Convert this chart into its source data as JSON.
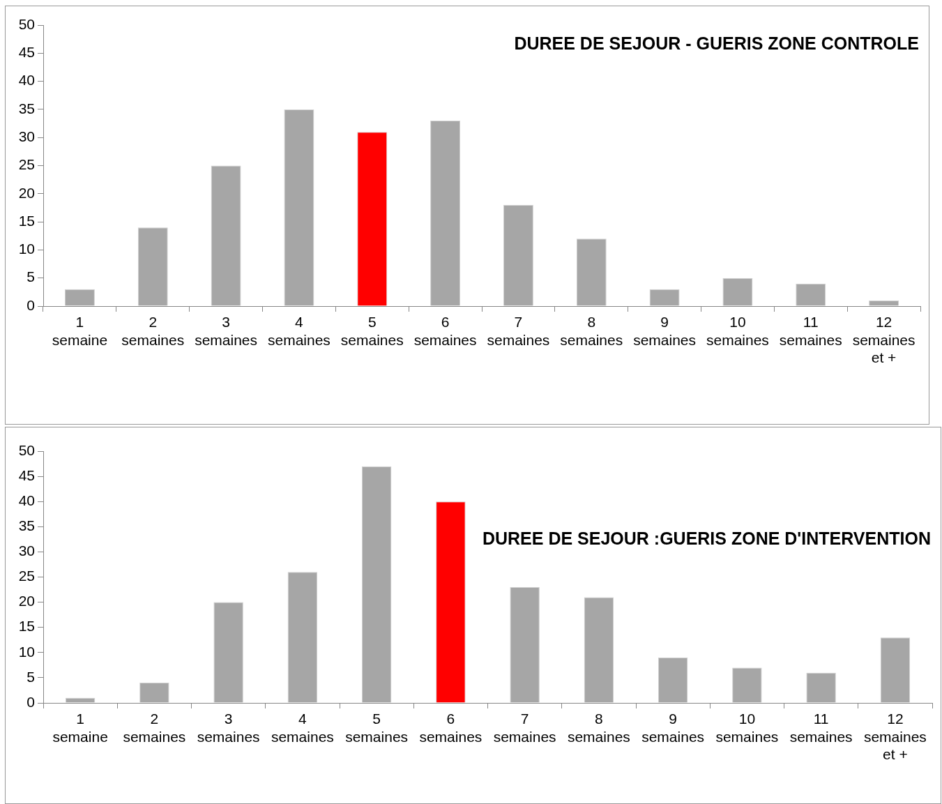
{
  "chart_data": [
    {
      "type": "bar",
      "title": "DUREE DE SEJOUR - GUERIS ZONE CONTROLE",
      "categories": [
        "1\nsemaine",
        "2\nsemaines",
        "3\nsemaines",
        "4\nsemaines",
        "5\nsemaines",
        "6\nsemaines",
        "7\nsemaines",
        "8\nsemaines",
        "9\nsemaines",
        "10\nsemaines",
        "11\nsemaines",
        "12\nsemaines\net +"
      ],
      "values": [
        3,
        14,
        25,
        35,
        31,
        33,
        18,
        12,
        3,
        5,
        4,
        1
      ],
      "colors": [
        "#a6a6a6",
        "#a6a6a6",
        "#a6a6a6",
        "#a6a6a6",
        "#ff0000",
        "#a6a6a6",
        "#a6a6a6",
        "#a6a6a6",
        "#a6a6a6",
        "#a6a6a6",
        "#a6a6a6",
        "#a6a6a6"
      ],
      "ylim": [
        0,
        50
      ],
      "yticks": [
        0,
        5,
        10,
        15,
        20,
        25,
        30,
        35,
        40,
        45,
        50
      ],
      "grid": false,
      "legend": false
    },
    {
      "type": "bar",
      "title": "DUREE DE SEJOUR :GUERIS ZONE D'INTERVENTION",
      "categories": [
        "1\nsemaine",
        "2\nsemaines",
        "3\nsemaines",
        "4\nsemaines",
        "5\nsemaines",
        "6\nsemaines",
        "7\nsemaines",
        "8\nsemaines",
        "9\nsemaines",
        "10\nsemaines",
        "11\nsemaines",
        "12\nsemaines\net +"
      ],
      "values": [
        1,
        4,
        20,
        26,
        47,
        40,
        23,
        21,
        9,
        7,
        6,
        13
      ],
      "colors": [
        "#a6a6a6",
        "#a6a6a6",
        "#a6a6a6",
        "#a6a6a6",
        "#a6a6a6",
        "#ff0000",
        "#a6a6a6",
        "#a6a6a6",
        "#a6a6a6",
        "#a6a6a6",
        "#a6a6a6",
        "#a6a6a6"
      ],
      "ylim": [
        0,
        50
      ],
      "yticks": [
        0,
        5,
        10,
        15,
        20,
        25,
        30,
        35,
        40,
        45,
        50
      ],
      "grid": false,
      "legend": false
    }
  ]
}
